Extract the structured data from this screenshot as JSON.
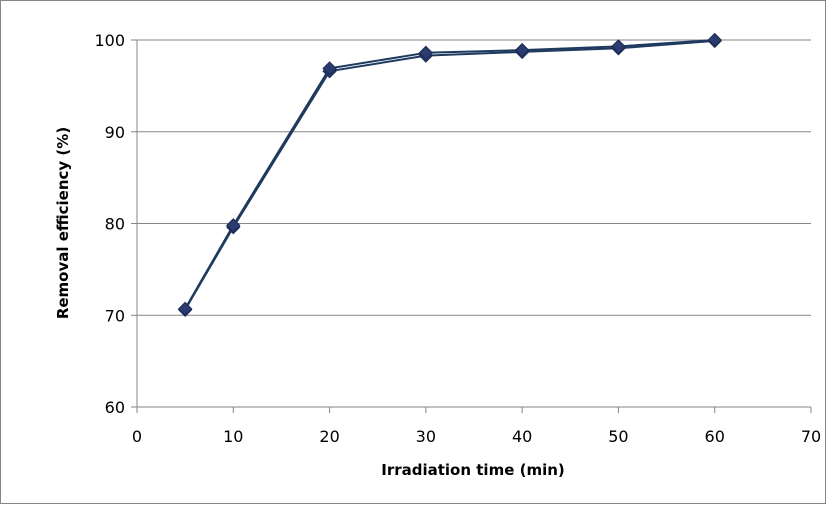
{
  "chart_data": {
    "type": "line",
    "title": "",
    "xlabel": "Irradiation time (min)",
    "ylabel": "Removal efficiency (%)",
    "xlim": [
      0,
      70
    ],
    "ylim": [
      60,
      100
    ],
    "x_ticks": [
      0,
      10,
      20,
      30,
      40,
      50,
      60,
      70
    ],
    "y_ticks": [
      60,
      70,
      80,
      90,
      100
    ],
    "grid": "horizontal",
    "legend": "none",
    "series": [
      {
        "x": [
          5,
          10,
          20,
          30,
          40,
          50,
          60
        ],
        "values": [
          70.6,
          79.6,
          96.6,
          98.3,
          98.7,
          99.1,
          99.9
        ],
        "line_color": "#1F3A5F",
        "marker": "diamond",
        "marker_color": "#2B3B6E"
      },
      {
        "x": [
          5,
          10,
          20,
          30,
          40,
          50,
          60
        ],
        "values": [
          70.7,
          79.8,
          96.9,
          98.6,
          98.9,
          99.3,
          100
        ],
        "line_color": "#1F3A5F",
        "marker": "diamond",
        "marker_color": "#2B3B6E"
      }
    ]
  }
}
